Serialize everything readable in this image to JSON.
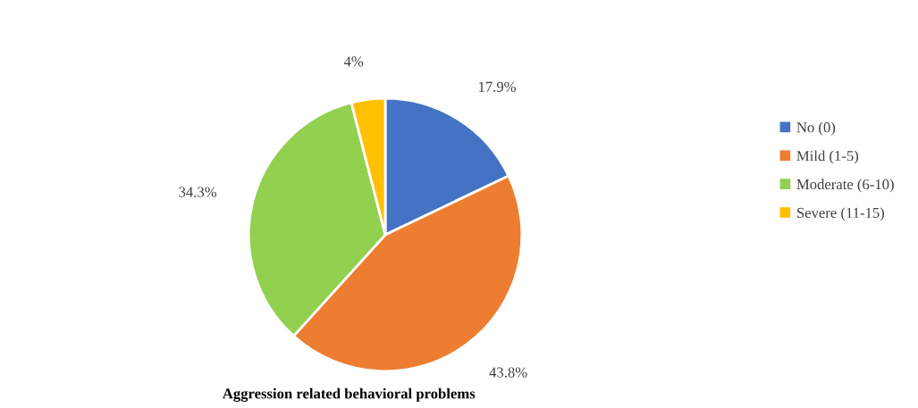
{
  "chart_data": {
    "type": "pie",
    "title": "Aggression related behavioral problems",
    "categories": [
      "No (0)",
      "Mild (1-5)",
      "Moderate (6-10)",
      "Severe (11-15)"
    ],
    "values": [
      17.9,
      43.8,
      34.3,
      4
    ],
    "value_labels": [
      "17.9%",
      "43.8%",
      "34.3%",
      "4%"
    ],
    "colors": [
      "#4472c4",
      "#ed7d31",
      "#92d050",
      "#ffc000"
    ],
    "legend": "right"
  }
}
